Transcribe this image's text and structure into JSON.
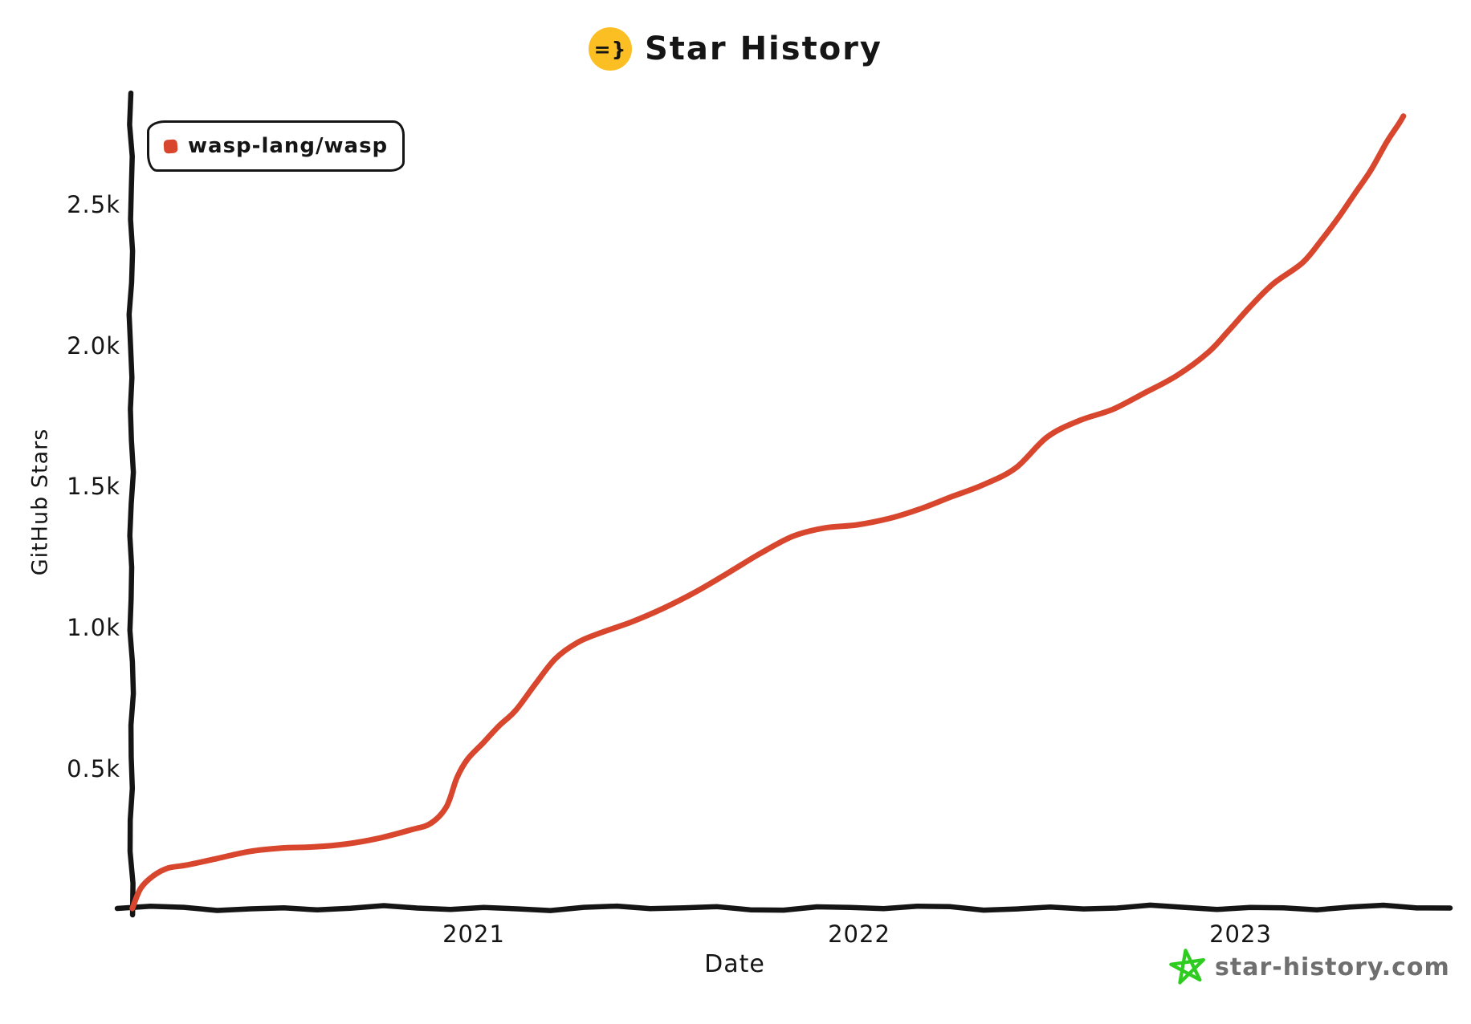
{
  "title": {
    "text": "Star History",
    "logo_glyph": "=}"
  },
  "legend": {
    "label": "wasp-lang/wasp"
  },
  "footer": {
    "site": "star-history.com"
  },
  "colors": {
    "line_red": "#d8472d",
    "logo_yellow": "#fbbf24",
    "footer_star_green": "#2ecc21",
    "footer_text_gray": "#6f6f6f",
    "axis_black": "#151515"
  },
  "chart_data": {
    "type": "line",
    "title": "Star History",
    "xlabel": "Date",
    "ylabel": "GitHub Stars",
    "grid": false,
    "legend_position": "top-left",
    "x_tick_labels": [
      "2021",
      "2022",
      "2023"
    ],
    "y_tick_labels": [
      "0.5k",
      "1.0k",
      "1.5k",
      "2.0k",
      "2.5k"
    ],
    "y_tick_values": [
      500,
      1000,
      1500,
      2000,
      2500
    ],
    "ylim": [
      0,
      2900
    ],
    "xlim": [
      "2020-02-10",
      "2023-07-01"
    ],
    "series": [
      {
        "name": "wasp-lang/wasp",
        "color": "#d8472d",
        "points": [
          [
            "2020-02-10",
            0
          ],
          [
            "2020-02-18",
            75
          ],
          [
            "2020-03-01",
            115
          ],
          [
            "2020-03-15",
            140
          ],
          [
            "2020-04-01",
            155
          ],
          [
            "2020-05-01",
            180
          ],
          [
            "2020-06-01",
            200
          ],
          [
            "2020-07-01",
            212
          ],
          [
            "2020-08-01",
            221
          ],
          [
            "2020-09-01",
            230
          ],
          [
            "2020-10-01",
            245
          ],
          [
            "2020-11-01",
            278
          ],
          [
            "2020-11-20",
            305
          ],
          [
            "2020-12-05",
            360
          ],
          [
            "2020-12-15",
            460
          ],
          [
            "2020-12-25",
            530
          ],
          [
            "2021-01-10",
            590
          ],
          [
            "2021-01-25",
            645
          ],
          [
            "2021-02-10",
            700
          ],
          [
            "2021-03-01",
            800
          ],
          [
            "2021-03-20",
            888
          ],
          [
            "2021-04-10",
            940
          ],
          [
            "2021-05-01",
            975
          ],
          [
            "2021-06-01",
            1020
          ],
          [
            "2021-07-01",
            1065
          ],
          [
            "2021-08-01",
            1120
          ],
          [
            "2021-09-01",
            1192
          ],
          [
            "2021-10-01",
            1262
          ],
          [
            "2021-11-01",
            1318
          ],
          [
            "2021-12-01",
            1346
          ],
          [
            "2022-01-01",
            1362
          ],
          [
            "2022-02-01",
            1385
          ],
          [
            "2022-03-01",
            1412
          ],
          [
            "2022-04-01",
            1458
          ],
          [
            "2022-05-01",
            1505
          ],
          [
            "2022-06-01",
            1562
          ],
          [
            "2022-07-01",
            1668
          ],
          [
            "2022-08-01",
            1730
          ],
          [
            "2022-09-01",
            1772
          ],
          [
            "2022-10-01",
            1825
          ],
          [
            "2022-11-01",
            1885
          ],
          [
            "2022-12-01",
            1972
          ],
          [
            "2022-12-20",
            2048
          ],
          [
            "2023-01-10",
            2130
          ],
          [
            "2023-02-01",
            2212
          ],
          [
            "2023-03-01",
            2292
          ],
          [
            "2023-03-20",
            2375
          ],
          [
            "2023-04-05",
            2450
          ],
          [
            "2023-04-20",
            2535
          ],
          [
            "2023-05-05",
            2620
          ],
          [
            "2023-05-20",
            2715
          ],
          [
            "2023-06-01",
            2780
          ],
          [
            "2023-06-05",
            2810
          ]
        ]
      }
    ]
  }
}
